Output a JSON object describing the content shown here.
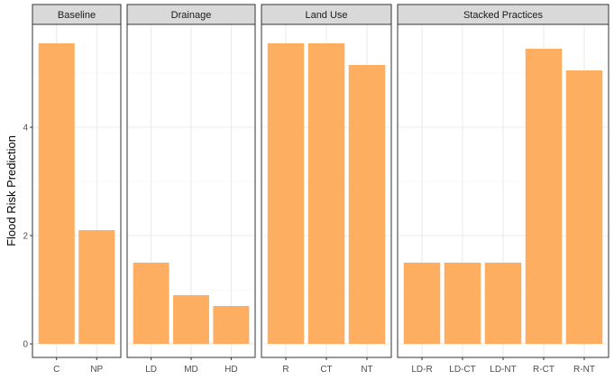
{
  "chart_data": {
    "type": "bar",
    "title": "",
    "xlabel": "",
    "ylabel": "Flood Risk Prediction",
    "ylim": [
      -0.25,
      5.9
    ],
    "yticks": [
      0,
      2,
      4
    ],
    "grid": true,
    "legend": "none",
    "colors": {
      "bar": "#FDAE61",
      "grid_major": "#EBEBEB",
      "grid_minor": "#F5F5F5",
      "strip_fill": "#D9D9D9",
      "border": "#333333"
    },
    "facets": [
      {
        "name": "Baseline",
        "categories": [
          "C",
          "NP"
        ],
        "values": [
          5.55,
          2.1
        ]
      },
      {
        "name": "Drainage",
        "categories": [
          "LD",
          "MD",
          "HD"
        ],
        "values": [
          1.5,
          0.9,
          0.7
        ]
      },
      {
        "name": "Land Use",
        "categories": [
          "R",
          "CT",
          "NT"
        ],
        "values": [
          5.55,
          5.55,
          5.15
        ]
      },
      {
        "name": "Stacked Practices",
        "categories": [
          "LD-R",
          "LD-CT",
          "LD-NT",
          "R-CT",
          "R-NT"
        ],
        "values": [
          1.5,
          1.5,
          1.5,
          5.45,
          5.05
        ]
      }
    ]
  }
}
